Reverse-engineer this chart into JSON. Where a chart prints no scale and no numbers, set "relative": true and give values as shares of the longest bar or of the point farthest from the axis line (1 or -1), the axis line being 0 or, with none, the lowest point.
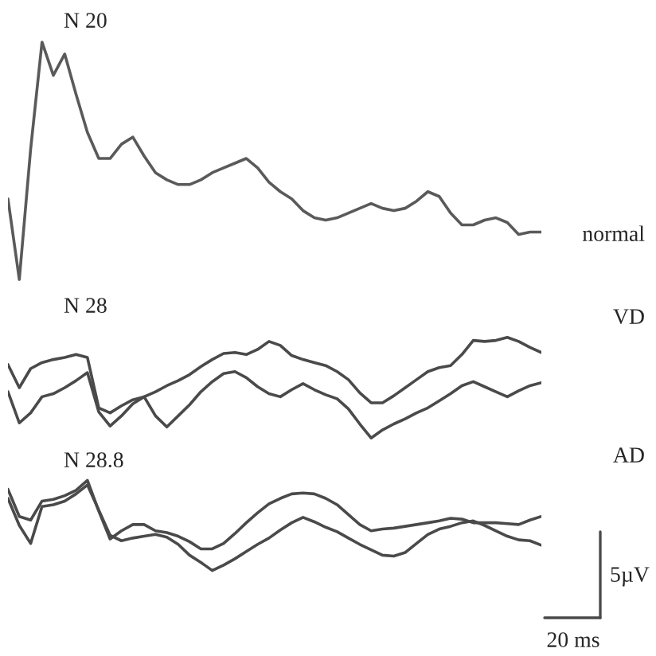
{
  "chart_data": [
    {
      "type": "line",
      "relative": true,
      "title": "N 20",
      "annotations": [
        "normal"
      ],
      "tick_labels": false,
      "categories": [
        null,
        null,
        null,
        null,
        null,
        null,
        null,
        null,
        null,
        null,
        null,
        null,
        null,
        null,
        null,
        null,
        null,
        null,
        null,
        null,
        null,
        null,
        null,
        null,
        null,
        null,
        null,
        null,
        null,
        null,
        null,
        null,
        null,
        null,
        null,
        null,
        null,
        null,
        null,
        null,
        null,
        null,
        null,
        null,
        null,
        null,
        null,
        null
      ],
      "series": [
        {
          "color": "#5a5a5a",
          "values": [
            0.34,
            0,
            0.55,
            1,
            0.86,
            0.95,
            0.78,
            0.62,
            0.51,
            0.51,
            0.57,
            0.6,
            0.52,
            0.45,
            0.42,
            0.4,
            0.4,
            0.42,
            0.45,
            0.47,
            0.49,
            0.51,
            0.47,
            0.41,
            0.37,
            0.34,
            0.29,
            0.26,
            0.25,
            0.26,
            0.28,
            0.3,
            0.32,
            0.3,
            0.29,
            0.3,
            0.33,
            0.37,
            0.35,
            0.28,
            0.23,
            0.23,
            0.25,
            0.26,
            0.24,
            0.19,
            0.2,
            0.2
          ]
        }
      ]
    },
    {
      "type": "line",
      "relative": true,
      "title": "N 28",
      "annotations": [
        "VD"
      ],
      "tick_labels": false,
      "categories": [
        null,
        null,
        null,
        null,
        null,
        null,
        null,
        null,
        null,
        null,
        null,
        null,
        null,
        null,
        null,
        null,
        null,
        null,
        null,
        null,
        null,
        null,
        null,
        null,
        null,
        null,
        null,
        null,
        null,
        null,
        null,
        null,
        null,
        null,
        null,
        null,
        null,
        null,
        null,
        null,
        null,
        null,
        null,
        null,
        null,
        null,
        null,
        null
      ],
      "series": [
        {
          "color": "#4a4a4a",
          "values": [
            0.73,
            0.5,
            0.69,
            0.75,
            0.78,
            0.8,
            0.83,
            0.8,
            0.3,
            0.25,
            0.32,
            0.38,
            0.41,
            0.46,
            0.52,
            0.57,
            0.63,
            0.71,
            0.78,
            0.84,
            0.85,
            0.83,
            0.88,
            0.96,
            0.92,
            0.82,
            0.78,
            0.75,
            0.72,
            0.66,
            0.58,
            0.45,
            0.35,
            0.35,
            0.42,
            0.5,
            0.58,
            0.66,
            0.7,
            0.72,
            0.83,
            0.97,
            0.96,
            0.97,
            1,
            0.96,
            0.9,
            0.85
          ]
        },
        {
          "color": "#4a4a4a",
          "values": [
            0.46,
            0.15,
            0.25,
            0.41,
            0.44,
            0.5,
            0.57,
            0.65,
            0.26,
            0.12,
            0.22,
            0.34,
            0.41,
            0.22,
            0.11,
            0.22,
            0.33,
            0.46,
            0.56,
            0.64,
            0.66,
            0.6,
            0.51,
            0.44,
            0.41,
            0.48,
            0.54,
            0.48,
            0.43,
            0.39,
            0.29,
            0.14,
            0,
            0.08,
            0.14,
            0.19,
            0.25,
            0.3,
            0.37,
            0.44,
            0.52,
            0.56,
            0.51,
            0.46,
            0.41,
            0.47,
            0.52,
            0.55
          ]
        }
      ]
    },
    {
      "type": "line",
      "relative": true,
      "title": "N 28.8",
      "annotations": [
        "AD",
        "5µV",
        "20 ms"
      ],
      "tick_labels": false,
      "categories": [
        null,
        null,
        null,
        null,
        null,
        null,
        null,
        null,
        null,
        null,
        null,
        null,
        null,
        null,
        null,
        null,
        null,
        null,
        null,
        null,
        null,
        null,
        null,
        null,
        null,
        null,
        null,
        null,
        null,
        null,
        null,
        null,
        null,
        null,
        null,
        null,
        null,
        null,
        null,
        null,
        null,
        null,
        null,
        null,
        null,
        null,
        null,
        null
      ],
      "series": [
        {
          "color": "#4a4a4a",
          "values": [
            0.9,
            0.6,
            0.56,
            0.77,
            0.79,
            0.83,
            0.89,
            1,
            0.66,
            0.35,
            0.44,
            0.51,
            0.51,
            0.44,
            0.42,
            0.38,
            0.32,
            0.24,
            0.24,
            0.3,
            0.41,
            0.53,
            0.64,
            0.74,
            0.8,
            0.85,
            0.86,
            0.85,
            0.8,
            0.73,
            0.62,
            0.51,
            0.44,
            0.46,
            0.47,
            0.49,
            0.51,
            0.53,
            0.55,
            0.58,
            0.57,
            0.53,
            0.53,
            0.53,
            0.52,
            0.51,
            0.56,
            0.6
          ]
        },
        {
          "color": "#4a4a4a",
          "values": [
            0.8,
            0.5,
            0.3,
            0.71,
            0.73,
            0.77,
            0.85,
            0.95,
            0.67,
            0.39,
            0.33,
            0.36,
            0.38,
            0.4,
            0.37,
            0.29,
            0.17,
            0.09,
            0,
            0.06,
            0.13,
            0.21,
            0.29,
            0.36,
            0.45,
            0.53,
            0.59,
            0.54,
            0.48,
            0.43,
            0.36,
            0.29,
            0.23,
            0.17,
            0.16,
            0.2,
            0.3,
            0.4,
            0.46,
            0.49,
            0.53,
            0.55,
            0.5,
            0.44,
            0.38,
            0.34,
            0.33,
            0.28
          ]
        }
      ]
    }
  ]
}
